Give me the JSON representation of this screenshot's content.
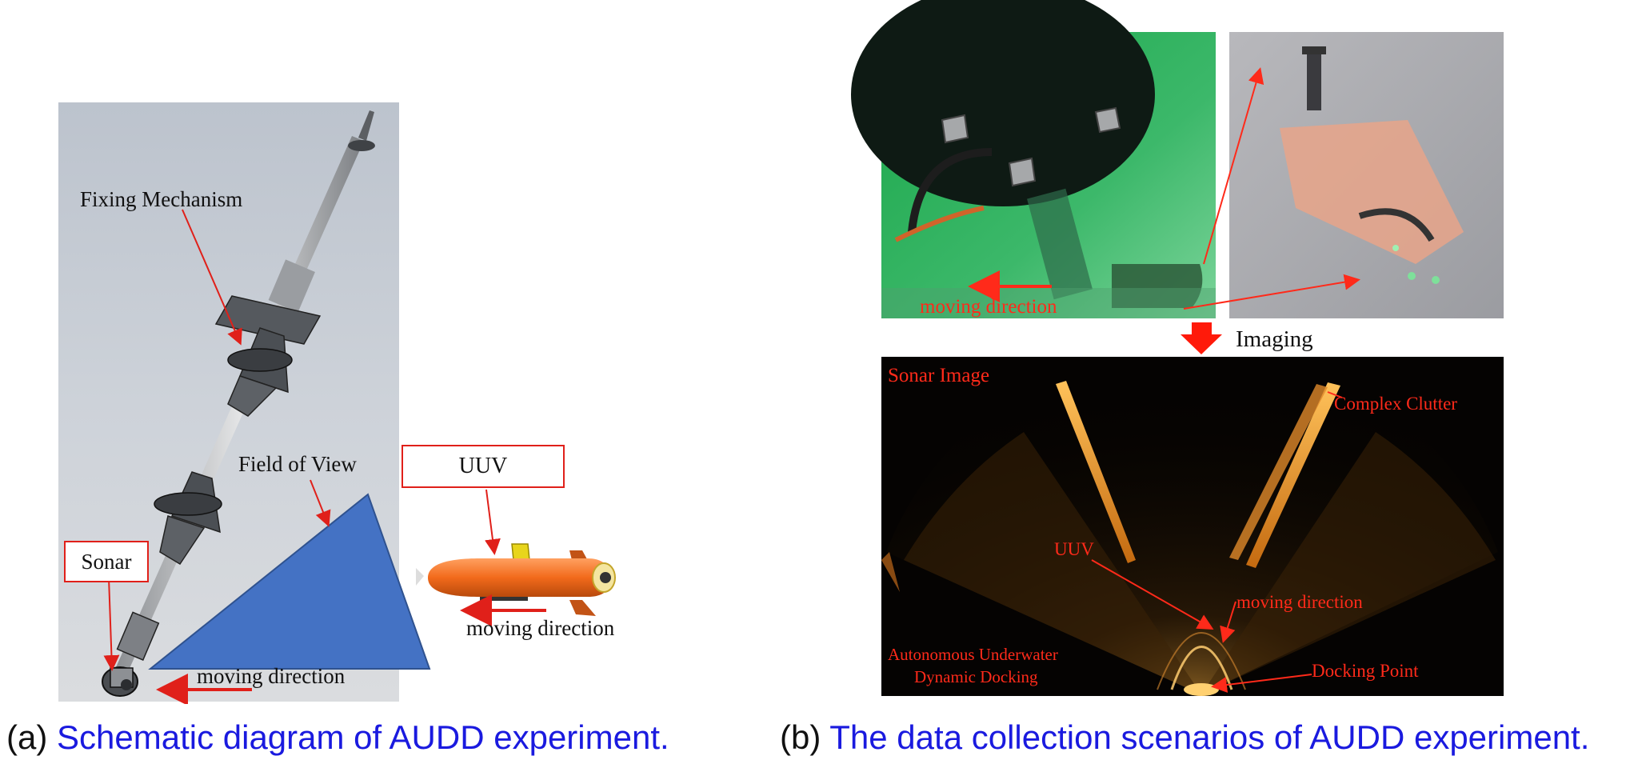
{
  "panel_a": {
    "fixing_mechanism": "Fixing Mechanism",
    "field_of_view": "Field of View",
    "uuv": "UUV",
    "sonar": "Sonar",
    "moving_direction_uuv": "moving direction",
    "moving_direction_sonar": "moving direction",
    "caption_tag": "(a)",
    "caption_text": "Schematic diagram of AUDD experiment."
  },
  "panel_b": {
    "moving_direction_photo": "moving direction",
    "imaging": "Imaging",
    "sonar_image": "Sonar Image",
    "complex_clutter": "Complex Clutter",
    "uuv": "UUV",
    "moving_direction_sonar": "moving direction",
    "audd_line1": "Autonomous Underwater",
    "audd_line2": "Dynamic Docking",
    "docking_point": "Docking Point",
    "caption_tag": "(b)",
    "caption_text": "The data collection scenarios of AUDD experiment."
  },
  "colors": {
    "annotation_red": "#e0201a",
    "caption_blue": "#1a1adf",
    "fov_blue": "#4472c4",
    "uuv_orange": "#f26a1b"
  }
}
